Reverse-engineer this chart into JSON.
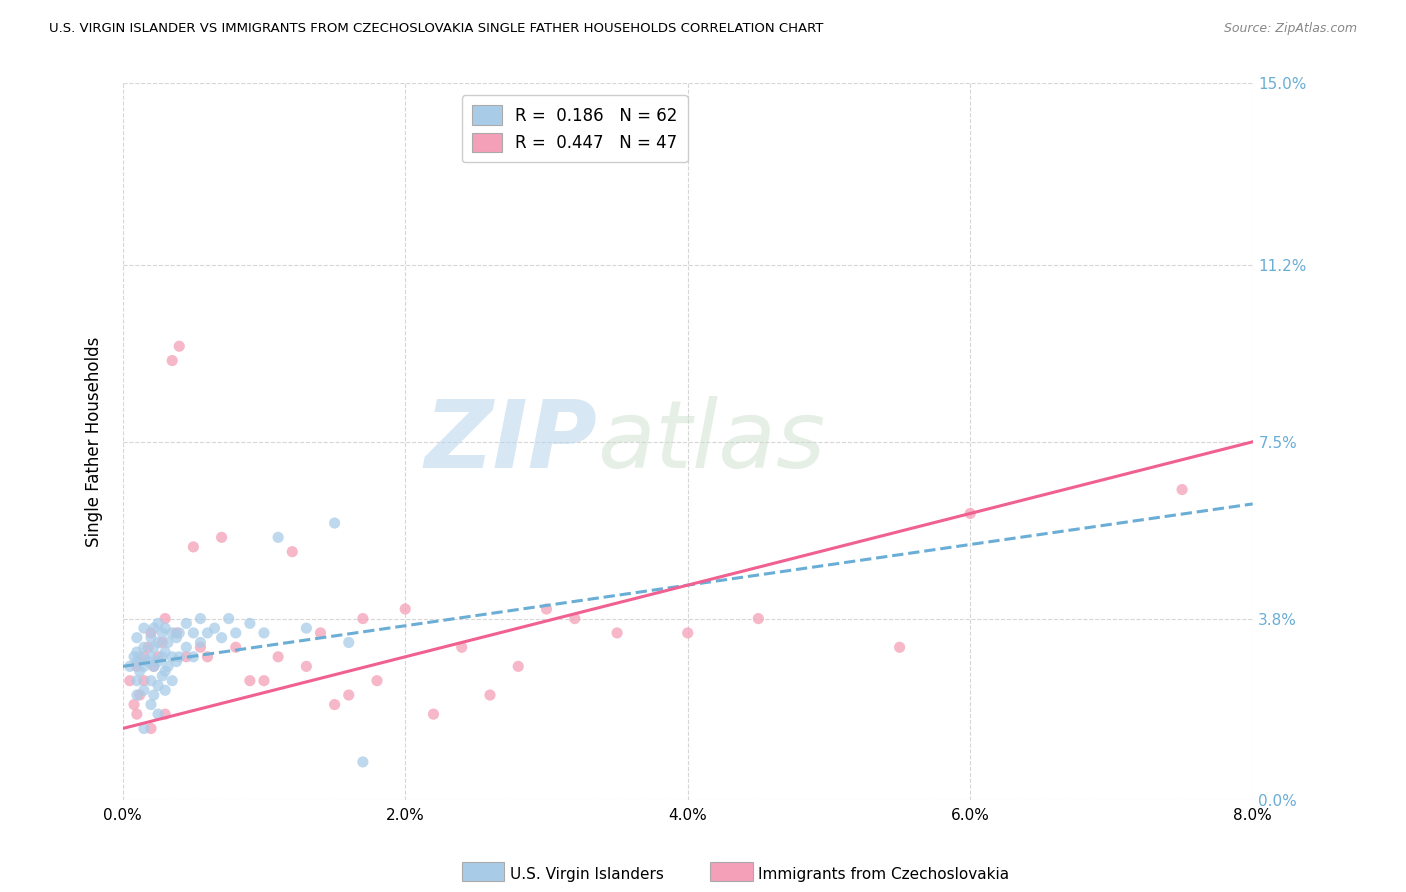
{
  "title": "U.S. VIRGIN ISLANDER VS IMMIGRANTS FROM CZECHOSLOVAKIA SINGLE FATHER HOUSEHOLDS CORRELATION CHART",
  "source": "Source: ZipAtlas.com",
  "ylabel": "Single Father Households",
  "ytick_values": [
    0.0,
    3.8,
    7.5,
    11.2,
    15.0
  ],
  "xtick_values": [
    0.0,
    2.0,
    4.0,
    6.0,
    8.0
  ],
  "xmin": 0.0,
  "xmax": 8.0,
  "ymin": 0.0,
  "ymax": 15.0,
  "R_blue": 0.186,
  "N_blue": 62,
  "R_pink": 0.447,
  "N_pink": 47,
  "color_blue": "#a8cce8",
  "color_pink": "#f4a0b8",
  "color_blue_line": "#6aaed6",
  "color_pink_line": "#f06090",
  "legend_label_blue": "U.S. Virgin Islanders",
  "legend_label_pink": "Immigrants from Czechoslovakia",
  "watermark_zip": "ZIP",
  "watermark_atlas": "atlas",
  "blue_scatter_x": [
    0.05,
    0.08,
    0.1,
    0.1,
    0.1,
    0.1,
    0.1,
    0.12,
    0.12,
    0.15,
    0.15,
    0.15,
    0.15,
    0.15,
    0.18,
    0.2,
    0.2,
    0.2,
    0.2,
    0.22,
    0.22,
    0.22,
    0.22,
    0.25,
    0.25,
    0.25,
    0.25,
    0.25,
    0.28,
    0.28,
    0.28,
    0.3,
    0.3,
    0.3,
    0.3,
    0.32,
    0.32,
    0.35,
    0.35,
    0.35,
    0.38,
    0.38,
    0.4,
    0.4,
    0.45,
    0.45,
    0.5,
    0.5,
    0.55,
    0.55,
    0.6,
    0.65,
    0.7,
    0.75,
    0.8,
    0.9,
    1.0,
    1.1,
    1.3,
    1.5,
    1.6,
    1.7
  ],
  "blue_scatter_y": [
    2.8,
    3.0,
    2.2,
    2.5,
    2.9,
    3.1,
    3.4,
    2.7,
    3.0,
    1.5,
    2.3,
    2.8,
    3.2,
    3.6,
    2.9,
    2.0,
    2.5,
    3.0,
    3.4,
    2.2,
    2.8,
    3.2,
    3.6,
    1.8,
    2.4,
    2.9,
    3.3,
    3.7,
    2.6,
    3.0,
    3.5,
    2.3,
    2.7,
    3.1,
    3.6,
    2.8,
    3.3,
    2.5,
    3.0,
    3.5,
    2.9,
    3.4,
    3.0,
    3.5,
    3.2,
    3.7,
    3.0,
    3.5,
    3.3,
    3.8,
    3.5,
    3.6,
    3.4,
    3.8,
    3.5,
    3.7,
    3.5,
    5.5,
    3.6,
    5.8,
    3.3,
    0.8
  ],
  "pink_scatter_x": [
    0.05,
    0.08,
    0.1,
    0.1,
    0.12,
    0.15,
    0.15,
    0.18,
    0.2,
    0.2,
    0.22,
    0.25,
    0.28,
    0.3,
    0.3,
    0.35,
    0.38,
    0.4,
    0.45,
    0.5,
    0.55,
    0.6,
    0.7,
    0.8,
    0.9,
    1.0,
    1.1,
    1.2,
    1.3,
    1.4,
    1.5,
    1.6,
    1.7,
    1.8,
    2.0,
    2.2,
    2.4,
    2.6,
    2.8,
    3.0,
    3.2,
    3.5,
    4.0,
    4.5,
    5.5,
    6.0,
    7.5
  ],
  "pink_scatter_y": [
    2.5,
    2.0,
    1.8,
    2.8,
    2.2,
    2.5,
    3.0,
    3.2,
    1.5,
    3.5,
    2.8,
    3.0,
    3.3,
    1.8,
    3.8,
    9.2,
    3.5,
    9.5,
    3.0,
    5.3,
    3.2,
    3.0,
    5.5,
    3.2,
    2.5,
    2.5,
    3.0,
    5.2,
    2.8,
    3.5,
    2.0,
    2.2,
    3.8,
    2.5,
    4.0,
    1.8,
    3.2,
    2.2,
    2.8,
    4.0,
    3.8,
    3.5,
    3.5,
    3.8,
    3.2,
    6.0,
    6.5
  ],
  "blue_line_x0": 0.0,
  "blue_line_y0": 2.8,
  "blue_line_x1": 8.0,
  "blue_line_y1": 6.2,
  "pink_line_x0": 0.0,
  "pink_line_y0": 1.5,
  "pink_line_x1": 8.0,
  "pink_line_y1": 7.5,
  "background_color": "#ffffff",
  "grid_color": "#cccccc"
}
